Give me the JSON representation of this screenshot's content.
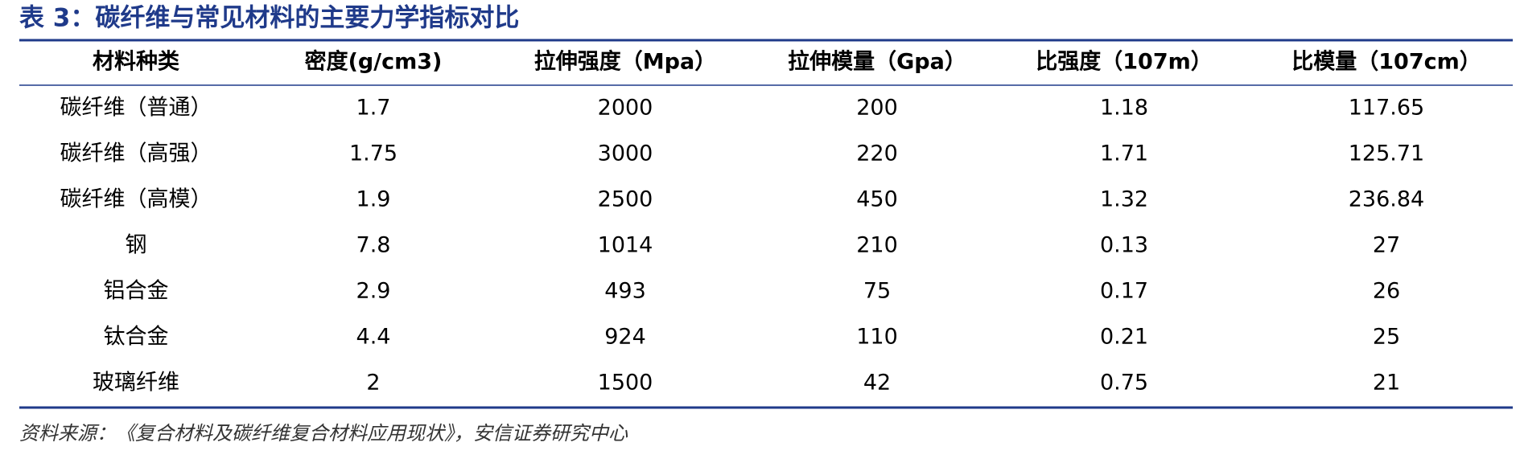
{
  "title": "表 3：碳纤维与常见材料的主要力学指标对比",
  "table": {
    "headers": [
      "材料种类",
      "密度(g/cm3)",
      "拉伸强度（Mpa）",
      "拉伸模量（Gpa）",
      "比强度（107m）",
      "比模量（107cm）"
    ],
    "rows": [
      [
        "碳纤维（普通）",
        "1.7",
        "2000",
        "200",
        "1.18",
        "117.65"
      ],
      [
        "碳纤维（高强）",
        "1.75",
        "3000",
        "220",
        "1.71",
        "125.71"
      ],
      [
        "碳纤维（高模）",
        "1.9",
        "2500",
        "450",
        "1.32",
        "236.84"
      ],
      [
        "钢",
        "7.8",
        "1014",
        "210",
        "0.13",
        "27"
      ],
      [
        "铝合金",
        "2.9",
        "493",
        "75",
        "0.17",
        "26"
      ],
      [
        "钛合金",
        "4.4",
        "924",
        "110",
        "0.21",
        "25"
      ],
      [
        "玻璃纤维",
        "2",
        "1500",
        "42",
        "0.75",
        "21"
      ]
    ]
  },
  "source": "资料来源：《复合材料及碳纤维复合材料应用现状》，安信证券研究中心"
}
